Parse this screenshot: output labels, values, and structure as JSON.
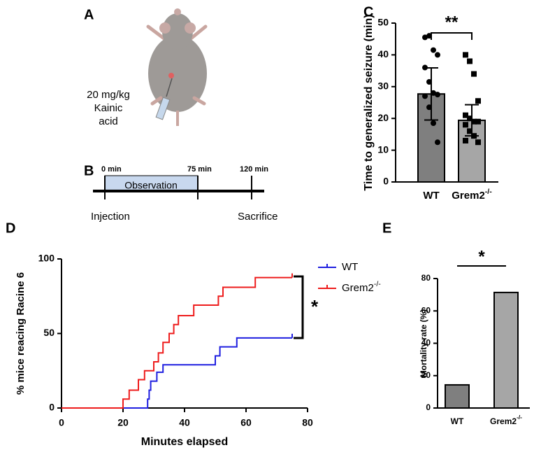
{
  "injection": {
    "panel": "A",
    "lines": [
      "20 mg/kg",
      "Kainic",
      "acid"
    ]
  },
  "timeline": {
    "panel": "B",
    "times": [
      "0 min",
      "75 min",
      "120 min"
    ],
    "period": "Observation",
    "start": "Injection",
    "end": "Sacrifice"
  },
  "chart_data": [
    {
      "panel": "C",
      "type": "bar",
      "y_label": "Time to generalized seizure (min)",
      "categories": [
        "WT",
        "Grem2-/-"
      ],
      "values": [
        27.7,
        19.4
      ],
      "errors": [
        8.2,
        4.9
      ],
      "colors": [
        "#7f7f7f",
        "#a6a6a6"
      ],
      "markers": [
        "circle",
        "square"
      ],
      "points": [
        [
          45.5,
          46,
          41.5,
          40,
          36,
          31.5,
          28,
          27.5,
          27,
          23.5,
          18.5,
          12.5
        ],
        [
          40,
          38,
          34,
          25.5,
          21,
          20,
          19,
          19,
          18,
          16,
          14.5,
          12.5,
          13
        ]
      ],
      "ylim": [
        0,
        50
      ],
      "yticks": [
        0,
        10,
        20,
        30,
        40,
        50
      ],
      "significance": "**"
    },
    {
      "panel": "D",
      "type": "step",
      "x_label": "Minutes elapsed",
      "y_label": "% mice reacing Racine 6",
      "series": [
        {
          "name": "WT",
          "color": "#1f1fe0",
          "x": [
            0,
            28,
            28.5,
            29,
            31,
            33,
            50,
            51.5,
            57,
            75
          ],
          "values": [
            0,
            6,
            12,
            18,
            24,
            29,
            35,
            41,
            47,
            47
          ]
        },
        {
          "name": "Grem2-/-",
          "color": "#ee1c1c",
          "x": [
            0,
            20,
            22,
            25,
            27,
            30,
            31.5,
            33,
            35,
            36.5,
            38,
            43,
            51,
            52.5,
            63,
            75
          ],
          "values": [
            0,
            6,
            12,
            19,
            25,
            31,
            37,
            44,
            50,
            56,
            62,
            69,
            75,
            81,
            87.5,
            87.5
          ]
        }
      ],
      "xlim": [
        0,
        80
      ],
      "xticks": [
        0,
        20,
        40,
        60,
        80
      ],
      "ylim": [
        0,
        100
      ],
      "yticks": [
        0,
        50,
        100
      ],
      "significance": "*"
    },
    {
      "panel": "E",
      "type": "bar",
      "y_label": "Mortality rate (%)",
      "categories": [
        "WT",
        "Grem2-/-"
      ],
      "values": [
        14.3,
        71.4
      ],
      "colors": [
        "#7f7f7f",
        "#a6a6a6"
      ],
      "ylim": [
        0,
        80
      ],
      "yticks": [
        0,
        20,
        40,
        60,
        80
      ],
      "significance": "*"
    }
  ]
}
